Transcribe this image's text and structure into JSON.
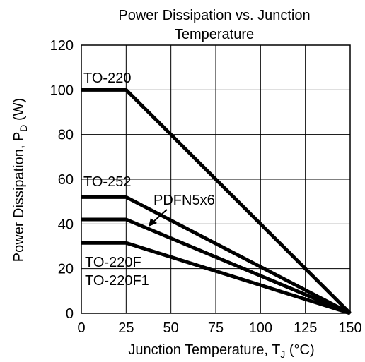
{
  "chart_data": {
    "type": "line",
    "title_lines": [
      "Power Dissipation vs. Junction",
      "Temperature"
    ],
    "xlabel": "Junction Temperature, T",
    "xlabel_sub": "J",
    "xlabel_unit": " (°C)",
    "ylabel": "Power Dissipation, P",
    "ylabel_sub": "D",
    "ylabel_unit": " (W)",
    "xlim": [
      0,
      150
    ],
    "ylim": [
      0,
      120
    ],
    "xticks": [
      0,
      25,
      50,
      75,
      100,
      125,
      150
    ],
    "yticks": [
      0,
      20,
      40,
      60,
      80,
      100,
      120
    ],
    "grid": true,
    "series": [
      {
        "name": "TO-220",
        "x": [
          0,
          25,
          150
        ],
        "y": [
          100,
          100,
          0
        ]
      },
      {
        "name": "TO-252",
        "x": [
          0,
          25,
          150
        ],
        "y": [
          52,
          52,
          0
        ]
      },
      {
        "name": "PDFN5x6",
        "x": [
          0,
          25,
          150
        ],
        "y": [
          42,
          42,
          0
        ]
      },
      {
        "name": "TO-220F",
        "x": [
          0,
          25,
          150
        ],
        "y": [
          31.5,
          31.5,
          0
        ]
      }
    ],
    "annotations": [
      "TO-220",
      "TO-252",
      "PDFN5x6",
      "TO-220F",
      "TO-220F1"
    ]
  }
}
